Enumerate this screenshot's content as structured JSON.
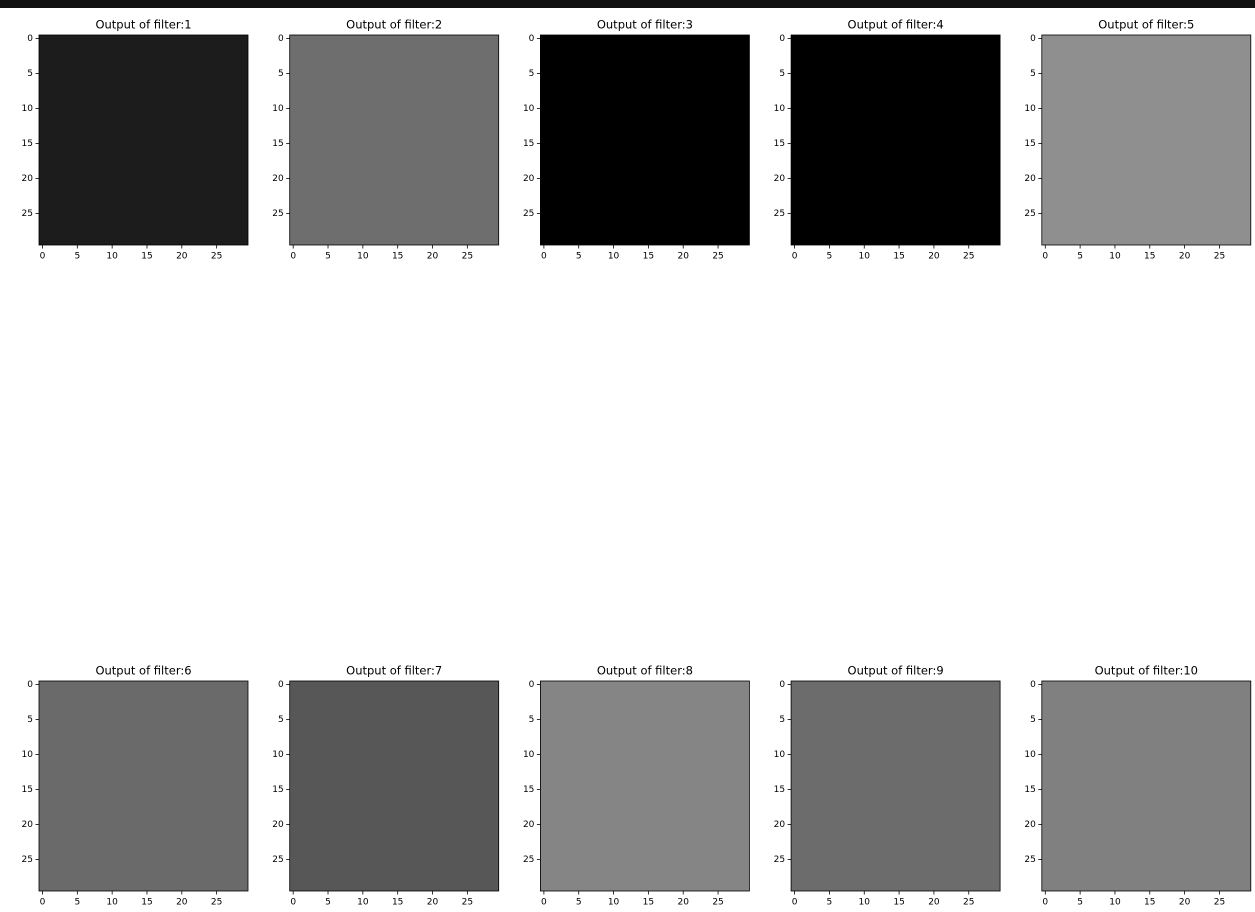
{
  "chart_data": [
    {
      "type": "image",
      "title": "Output of filter:1",
      "color": "#1c1c1c",
      "xlim": [
        -0.5,
        29.5
      ],
      "ylim": [
        29.5,
        -0.5
      ],
      "xticks": [
        0,
        5,
        10,
        15,
        20,
        25
      ],
      "yticks": [
        0,
        5,
        10,
        15,
        20,
        25
      ]
    },
    {
      "type": "image",
      "title": "Output of filter:2",
      "color": "#6e6e6e",
      "xlim": [
        -0.5,
        29.5
      ],
      "ylim": [
        29.5,
        -0.5
      ],
      "xticks": [
        0,
        5,
        10,
        15,
        20,
        25
      ],
      "yticks": [
        0,
        5,
        10,
        15,
        20,
        25
      ]
    },
    {
      "type": "image",
      "title": "Output of filter:3",
      "color": "#000000",
      "xlim": [
        -0.5,
        29.5
      ],
      "ylim": [
        29.5,
        -0.5
      ],
      "xticks": [
        0,
        5,
        10,
        15,
        20,
        25
      ],
      "yticks": [
        0,
        5,
        10,
        15,
        20,
        25
      ]
    },
    {
      "type": "image",
      "title": "Output of filter:4",
      "color": "#000000",
      "xlim": [
        -0.5,
        29.5
      ],
      "ylim": [
        29.5,
        -0.5
      ],
      "xticks": [
        0,
        5,
        10,
        15,
        20,
        25
      ],
      "yticks": [
        0,
        5,
        10,
        15,
        20,
        25
      ]
    },
    {
      "type": "image",
      "title": "Output of filter:5",
      "color": "#8f8f8f",
      "xlim": [
        -0.5,
        29.5
      ],
      "ylim": [
        29.5,
        -0.5
      ],
      "xticks": [
        0,
        5,
        10,
        15,
        20,
        25
      ],
      "yticks": [
        0,
        5,
        10,
        15,
        20,
        25
      ]
    },
    {
      "type": "image",
      "title": "Output of filter:6",
      "color": "#6a6a6a",
      "xlim": [
        -0.5,
        29.5
      ],
      "ylim": [
        29.5,
        -0.5
      ],
      "xticks": [
        0,
        5,
        10,
        15,
        20,
        25
      ],
      "yticks": [
        0,
        5,
        10,
        15,
        20,
        25
      ]
    },
    {
      "type": "image",
      "title": "Output of filter:7",
      "color": "#575757",
      "xlim": [
        -0.5,
        29.5
      ],
      "ylim": [
        29.5,
        -0.5
      ],
      "xticks": [
        0,
        5,
        10,
        15,
        20,
        25
      ],
      "yticks": [
        0,
        5,
        10,
        15,
        20,
        25
      ]
    },
    {
      "type": "image",
      "title": "Output of filter:8",
      "color": "#858585",
      "xlim": [
        -0.5,
        29.5
      ],
      "ylim": [
        29.5,
        -0.5
      ],
      "xticks": [
        0,
        5,
        10,
        15,
        20,
        25
      ],
      "yticks": [
        0,
        5,
        10,
        15,
        20,
        25
      ]
    },
    {
      "type": "image",
      "title": "Output of filter:9",
      "color": "#6c6c6c",
      "xlim": [
        -0.5,
        29.5
      ],
      "ylim": [
        29.5,
        -0.5
      ],
      "xticks": [
        0,
        5,
        10,
        15,
        20,
        25
      ],
      "yticks": [
        0,
        5,
        10,
        15,
        20,
        25
      ]
    },
    {
      "type": "image",
      "title": "Output of filter:10",
      "color": "#808080",
      "xlim": [
        -0.5,
        29.5
      ],
      "ylim": [
        29.5,
        -0.5
      ],
      "xticks": [
        0,
        5,
        10,
        15,
        20,
        25
      ],
      "yticks": [
        0,
        5,
        10,
        15,
        20,
        25
      ]
    }
  ]
}
